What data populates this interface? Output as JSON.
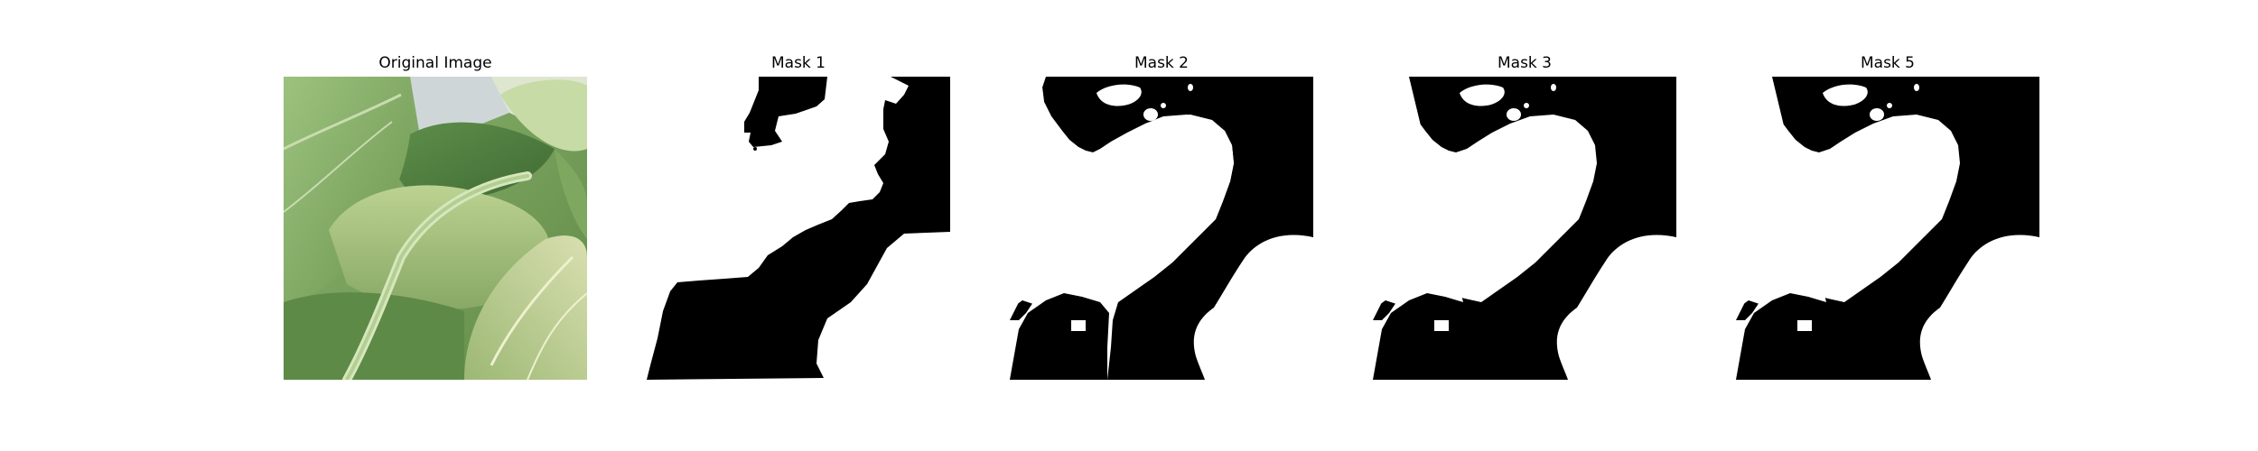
{
  "panels": [
    {
      "title": "Original Image",
      "kind": "photo",
      "subject": "green leafy vegetable leaves (bok choy) close-up"
    },
    {
      "title": "Mask 1",
      "kind": "mask"
    },
    {
      "title": "Mask 2",
      "kind": "mask"
    },
    {
      "title": "Mask 3",
      "kind": "mask"
    },
    {
      "title": "Mask 5",
      "kind": "mask"
    }
  ],
  "colors": {
    "background": "#ffffff",
    "mask_foreground": "#000000",
    "mask_background": "#ffffff",
    "leaf_light": "#a9c98c",
    "leaf_mid": "#7fa862",
    "leaf_dark": "#4f7a3a",
    "sky": "#cfd6d8"
  }
}
